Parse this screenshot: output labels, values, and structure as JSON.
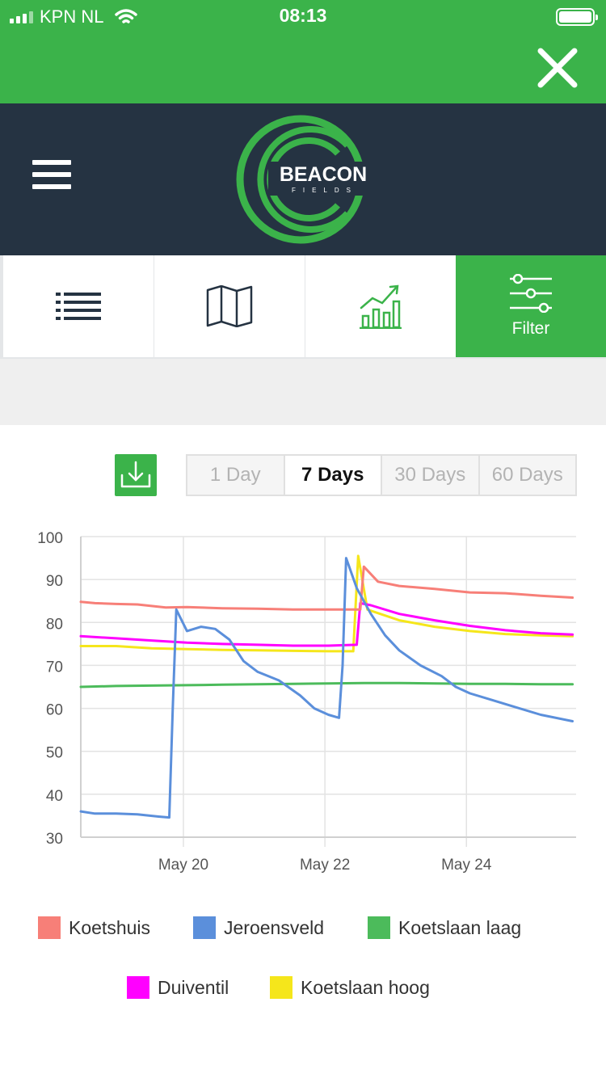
{
  "status": {
    "carrier": "KPN NL",
    "time": "08:13"
  },
  "header": {
    "logo_text": "BEACON",
    "logo_subtext": "FIELDS",
    "menu_icon": "hamburger-icon",
    "close_icon": "close-icon"
  },
  "tabs": [
    {
      "icon": "list-icon",
      "label": "",
      "active": false
    },
    {
      "icon": "map-icon",
      "label": "",
      "active": false
    },
    {
      "icon": "chart-icon",
      "label": "",
      "active": false
    },
    {
      "icon": "filter-sliders-icon",
      "label": "Filter",
      "active": true
    }
  ],
  "toolbar": {
    "download_icon": "download-icon",
    "ranges": [
      "1 Day",
      "7 Days",
      "30 Days",
      "60 Days"
    ],
    "selected_range": "7 Days"
  },
  "colors": {
    "brand_green": "#3bb34a",
    "header_dark": "#253342"
  },
  "chart_data": {
    "type": "line",
    "ylim": [
      30,
      100
    ],
    "yticks": [
      30,
      40,
      50,
      60,
      70,
      80,
      90,
      100
    ],
    "x_ticks": [
      "May 20",
      "May 22",
      "May 24"
    ],
    "x_range_days": [
      18.5,
      25.5
    ],
    "grid": true,
    "legend_position": "bottom",
    "series": [
      {
        "name": "Koetshuis",
        "color": "#f77f78",
        "points": [
          [
            18.5,
            84.8
          ],
          [
            18.7,
            84.5
          ],
          [
            19.0,
            84.3
          ],
          [
            19.3,
            84.2
          ],
          [
            19.7,
            83.5
          ],
          [
            20.0,
            83.6
          ],
          [
            20.5,
            83.3
          ],
          [
            21.0,
            83.2
          ],
          [
            21.5,
            83.0
          ],
          [
            22.0,
            83.0
          ],
          [
            22.45,
            83.0
          ],
          [
            22.5,
            93.0
          ],
          [
            22.7,
            89.5
          ],
          [
            23.0,
            88.5
          ],
          [
            23.5,
            87.8
          ],
          [
            24.0,
            87.0
          ],
          [
            24.5,
            86.8
          ],
          [
            25.0,
            86.2
          ],
          [
            25.45,
            85.8
          ]
        ]
      },
      {
        "name": "Jeroensveld",
        "color": "#5b8fdb",
        "points": [
          [
            18.5,
            36.0
          ],
          [
            18.7,
            35.5
          ],
          [
            19.0,
            35.5
          ],
          [
            19.3,
            35.3
          ],
          [
            19.6,
            34.8
          ],
          [
            19.75,
            34.6
          ],
          [
            19.8,
            60.0
          ],
          [
            19.85,
            83.0
          ],
          [
            20.0,
            78.0
          ],
          [
            20.2,
            79.0
          ],
          [
            20.4,
            78.5
          ],
          [
            20.6,
            76.0
          ],
          [
            20.8,
            71.0
          ],
          [
            21.0,
            68.5
          ],
          [
            21.3,
            66.5
          ],
          [
            21.6,
            63.0
          ],
          [
            21.8,
            60.0
          ],
          [
            22.0,
            58.5
          ],
          [
            22.15,
            57.8
          ],
          [
            22.2,
            70.0
          ],
          [
            22.25,
            95.0
          ],
          [
            22.4,
            88.0
          ],
          [
            22.6,
            82.0
          ],
          [
            22.8,
            77.0
          ],
          [
            23.0,
            73.5
          ],
          [
            23.3,
            70.0
          ],
          [
            23.6,
            67.5
          ],
          [
            23.8,
            65.0
          ],
          [
            24.0,
            63.5
          ],
          [
            24.3,
            62.0
          ],
          [
            24.6,
            60.5
          ],
          [
            25.0,
            58.5
          ],
          [
            25.45,
            57.0
          ]
        ]
      },
      {
        "name": "Koetslaan laag",
        "color": "#4cbb5b",
        "points": [
          [
            18.5,
            65.0
          ],
          [
            19.0,
            65.2
          ],
          [
            19.5,
            65.3
          ],
          [
            20.0,
            65.4
          ],
          [
            20.5,
            65.5
          ],
          [
            21.0,
            65.6
          ],
          [
            21.5,
            65.7
          ],
          [
            22.0,
            65.8
          ],
          [
            22.5,
            65.9
          ],
          [
            23.0,
            65.9
          ],
          [
            23.5,
            65.8
          ],
          [
            24.0,
            65.7
          ],
          [
            24.5,
            65.7
          ],
          [
            25.0,
            65.6
          ],
          [
            25.45,
            65.6
          ]
        ]
      },
      {
        "name": "Duiventil",
        "color": "#ff00ff",
        "points": [
          [
            18.5,
            76.8
          ],
          [
            19.0,
            76.3
          ],
          [
            19.5,
            75.8
          ],
          [
            20.0,
            75.3
          ],
          [
            20.5,
            75.0
          ],
          [
            21.0,
            74.8
          ],
          [
            21.5,
            74.6
          ],
          [
            22.0,
            74.6
          ],
          [
            22.4,
            74.8
          ],
          [
            22.45,
            84.5
          ],
          [
            22.6,
            84.0
          ],
          [
            23.0,
            82.0
          ],
          [
            23.5,
            80.5
          ],
          [
            24.0,
            79.2
          ],
          [
            24.5,
            78.2
          ],
          [
            25.0,
            77.5
          ],
          [
            25.45,
            77.2
          ]
        ]
      },
      {
        "name": "Koetslaan hoog",
        "color": "#f5e61b",
        "points": [
          [
            18.5,
            74.5
          ],
          [
            19.0,
            74.5
          ],
          [
            19.5,
            74.0
          ],
          [
            20.0,
            73.8
          ],
          [
            20.5,
            73.6
          ],
          [
            21.0,
            73.5
          ],
          [
            21.5,
            73.4
          ],
          [
            22.0,
            73.3
          ],
          [
            22.35,
            73.3
          ],
          [
            22.42,
            95.5
          ],
          [
            22.55,
            83.0
          ],
          [
            23.0,
            80.5
          ],
          [
            23.5,
            79.0
          ],
          [
            24.0,
            78.0
          ],
          [
            24.5,
            77.3
          ],
          [
            25.0,
            77.0
          ],
          [
            25.45,
            76.8
          ]
        ]
      }
    ]
  }
}
